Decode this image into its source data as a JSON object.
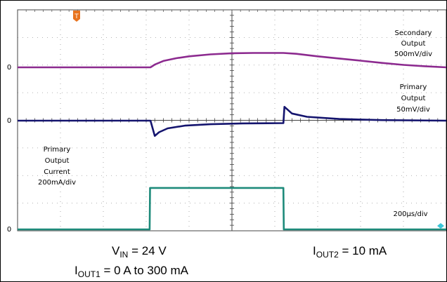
{
  "chart_data": {
    "type": "line",
    "x_unit": "µs",
    "x_range": [
      0,
      2000
    ],
    "timebase": "200µs/div",
    "y_zero_labels": [
      "0",
      "0",
      "0"
    ],
    "series": [
      {
        "name": "Secondary Output",
        "name_lines": [
          "Secondary",
          "Output"
        ],
        "scale": "500mV/div",
        "color": "#8c2a8f",
        "points": [
          [
            0,
            0
          ],
          [
            620,
            0
          ],
          [
            640,
            0.1
          ],
          [
            680,
            0.23
          ],
          [
            740,
            0.33
          ],
          [
            800,
            0.4
          ],
          [
            900,
            0.47
          ],
          [
            1000,
            0.51
          ],
          [
            1100,
            0.52
          ],
          [
            1240,
            0.52
          ],
          [
            1300,
            0.49
          ],
          [
            1400,
            0.4
          ],
          [
            1500,
            0.32
          ],
          [
            1600,
            0.24
          ],
          [
            1700,
            0.16
          ],
          [
            1800,
            0.09
          ],
          [
            1900,
            0.04
          ],
          [
            2000,
            0
          ]
        ]
      },
      {
        "name": "Primary Output",
        "name_lines": [
          "Primary",
          "Output"
        ],
        "scale": "50mV/div",
        "color": "#14146e",
        "points": [
          [
            0,
            0
          ],
          [
            620,
            0
          ],
          [
            640,
            -0.55
          ],
          [
            660,
            -0.42
          ],
          [
            700,
            -0.28
          ],
          [
            780,
            -0.18
          ],
          [
            900,
            -0.13
          ],
          [
            1050,
            -0.1
          ],
          [
            1240,
            -0.09
          ],
          [
            1245,
            0.5
          ],
          [
            1280,
            0.26
          ],
          [
            1350,
            0.14
          ],
          [
            1500,
            0.06
          ],
          [
            1700,
            0.02
          ],
          [
            2000,
            0
          ]
        ]
      },
      {
        "name": "Primary Output Current",
        "name_lines": [
          "Primary",
          "Output",
          "Current"
        ],
        "scale": "200mA/div",
        "color": "#1d8a7a",
        "points": [
          [
            0,
            0
          ],
          [
            616,
            0
          ],
          [
            618,
            1.5
          ],
          [
            1240,
            1.5
          ],
          [
            1242,
            0
          ],
          [
            2000,
            0
          ]
        ]
      }
    ],
    "trigger_marker": "T",
    "captions": {
      "vin": {
        "main": "V",
        "sub": "IN",
        "rest": " = 24 V"
      },
      "iout2": {
        "main": "I",
        "sub": "OUT2",
        "rest": " = 10 mA"
      },
      "iout1": {
        "main": "I",
        "sub": "OUT1",
        "rest": " = 0 A to 300 mA"
      }
    }
  }
}
